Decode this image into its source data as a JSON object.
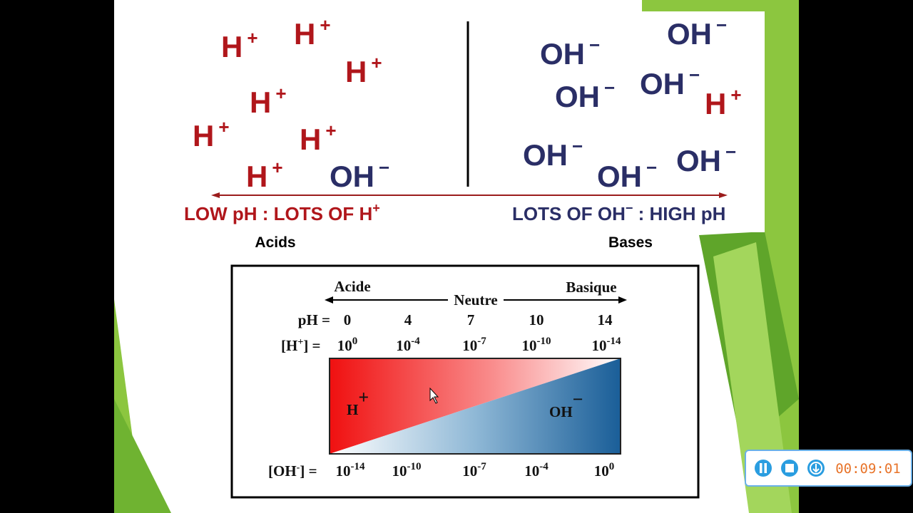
{
  "slide": {
    "illustration": {
      "acid_ions": [
        {
          "symbol": "H",
          "charge": "+"
        },
        {
          "symbol": "H",
          "charge": "+"
        },
        {
          "symbol": "H",
          "charge": "+"
        },
        {
          "symbol": "H",
          "charge": "+"
        },
        {
          "symbol": "H",
          "charge": "+"
        },
        {
          "symbol": "H",
          "charge": "+"
        },
        {
          "symbol": "H",
          "charge": "+"
        },
        {
          "symbol": "OH",
          "charge": "−"
        }
      ],
      "base_ions": [
        {
          "symbol": "OH",
          "charge": "−"
        },
        {
          "symbol": "OH",
          "charge": "−"
        },
        {
          "symbol": "OH",
          "charge": "−"
        },
        {
          "symbol": "OH",
          "charge": "−"
        },
        {
          "symbol": "H",
          "charge": "+"
        },
        {
          "symbol": "OH",
          "charge": "−"
        },
        {
          "symbol": "OH",
          "charge": "−"
        },
        {
          "symbol": "OH",
          "charge": "−"
        }
      ],
      "left_caption": {
        "text": "LOW pH : LOTS OF H",
        "charge": "+"
      },
      "right_caption": {
        "text": "LOTS OF OH",
        "charge": "−",
        "rest": " : HIGH pH"
      }
    },
    "acids_label": "Acids",
    "bases_label": "Bases",
    "scale": {
      "acid_label": "Acide",
      "neutral_label": "Neutre",
      "base_label": "Basique",
      "ph_label": "pH =",
      "ph_values": [
        0,
        4,
        7,
        10,
        14
      ],
      "h_label": {
        "text": "[H",
        "charge": "+",
        "close": "] ="
      },
      "h_values": [
        {
          "base": "10",
          "exp": "0"
        },
        {
          "base": "10",
          "exp": "-4"
        },
        {
          "base": "10",
          "exp": "-7"
        },
        {
          "base": "10",
          "exp": "-10"
        },
        {
          "base": "10",
          "exp": "-14"
        }
      ],
      "h_region": {
        "symbol": "H",
        "charge": "+"
      },
      "oh_region": {
        "symbol": "OH",
        "charge": "−"
      },
      "oh_label": {
        "text": "[OH",
        "charge": "-",
        "close": "] ="
      },
      "oh_values": [
        {
          "base": "10",
          "exp": "-14"
        },
        {
          "base": "10",
          "exp": "-10"
        },
        {
          "base": "10",
          "exp": "-7"
        },
        {
          "base": "10",
          "exp": "-4"
        },
        {
          "base": "10",
          "exp": "0"
        }
      ]
    }
  },
  "recorder": {
    "timer": "00:09:01"
  }
}
